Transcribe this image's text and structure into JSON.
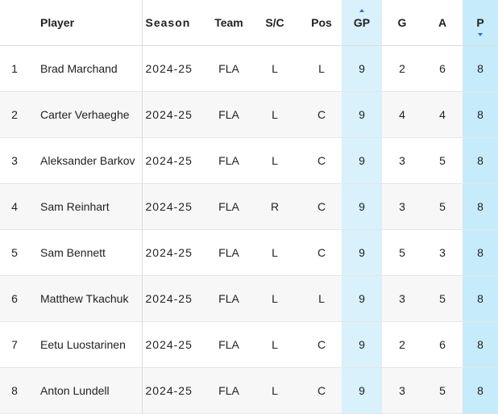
{
  "columns": {
    "rank": "",
    "player": "Player",
    "season": "Season",
    "team": "Team",
    "sc": "S/C",
    "pos": "Pos",
    "gp": "GP",
    "g": "G",
    "a": "A",
    "p": "P"
  },
  "rows": [
    {
      "rank": "1",
      "player": "Brad Marchand",
      "season": "2024-25",
      "team": "FLA",
      "sc": "L",
      "pos": "L",
      "gp": "9",
      "g": "2",
      "a": "6",
      "p": "8"
    },
    {
      "rank": "2",
      "player": "Carter Verhaeghe",
      "season": "2024-25",
      "team": "FLA",
      "sc": "L",
      "pos": "C",
      "gp": "9",
      "g": "4",
      "a": "4",
      "p": "8"
    },
    {
      "rank": "3",
      "player": "Aleksander Barkov",
      "season": "2024-25",
      "team": "FLA",
      "sc": "L",
      "pos": "C",
      "gp": "9",
      "g": "3",
      "a": "5",
      "p": "8"
    },
    {
      "rank": "4",
      "player": "Sam Reinhart",
      "season": "2024-25",
      "team": "FLA",
      "sc": "R",
      "pos": "C",
      "gp": "9",
      "g": "3",
      "a": "5",
      "p": "8"
    },
    {
      "rank": "5",
      "player": "Sam Bennett",
      "season": "2024-25",
      "team": "FLA",
      "sc": "L",
      "pos": "C",
      "gp": "9",
      "g": "5",
      "a": "3",
      "p": "8"
    },
    {
      "rank": "6",
      "player": "Matthew Tkachuk",
      "season": "2024-25",
      "team": "FLA",
      "sc": "L",
      "pos": "L",
      "gp": "9",
      "g": "3",
      "a": "5",
      "p": "8"
    },
    {
      "rank": "7",
      "player": "Eetu Luostarinen",
      "season": "2024-25",
      "team": "FLA",
      "sc": "L",
      "pos": "C",
      "gp": "9",
      "g": "2",
      "a": "6",
      "p": "8"
    },
    {
      "rank": "8",
      "player": "Anton Lundell",
      "season": "2024-25",
      "team": "FLA",
      "sc": "L",
      "pos": "C",
      "gp": "9",
      "g": "3",
      "a": "5",
      "p": "8"
    }
  ],
  "sort": {
    "gp": "ascending-indicator",
    "p": "descending"
  },
  "colors": {
    "gp_highlight": "#d8f1fb",
    "p_highlight": "#c6ecfb",
    "sort_arrow": "#2b6fd6"
  }
}
